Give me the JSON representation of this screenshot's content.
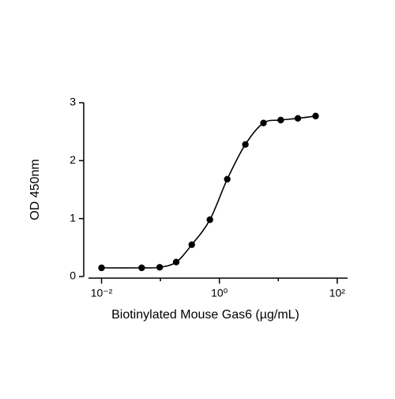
{
  "chart_data": {
    "type": "line",
    "markers": true,
    "smooth": true,
    "color": "#000000",
    "x_label": "Biotinylated Mouse Gas6 (µg/mL)",
    "y_label": "OD 450nm",
    "x": [
      0.01,
      0.048,
      0.097,
      0.185,
      0.34,
      0.69,
      1.36,
      2.76,
      5.6,
      11,
      21.5,
      43
    ],
    "series": [
      {
        "values": [
          0.15,
          0.15,
          0.16,
          0.25,
          0.55,
          0.98,
          1.68,
          2.28,
          2.65,
          2.7,
          2.73,
          2.77
        ]
      }
    ],
    "xscale": "log",
    "xlim": [
      0.006,
      150
    ],
    "xticks": [
      {
        "value": 0.01,
        "label": "10⁻²"
      },
      {
        "value": 1,
        "label": "10⁰"
      },
      {
        "value": 100,
        "label": "10²"
      }
    ],
    "minor_xticks": [
      0.1,
      10
    ],
    "ylim": [
      0,
      3
    ],
    "yticks": [
      0,
      1,
      2,
      3
    ]
  }
}
